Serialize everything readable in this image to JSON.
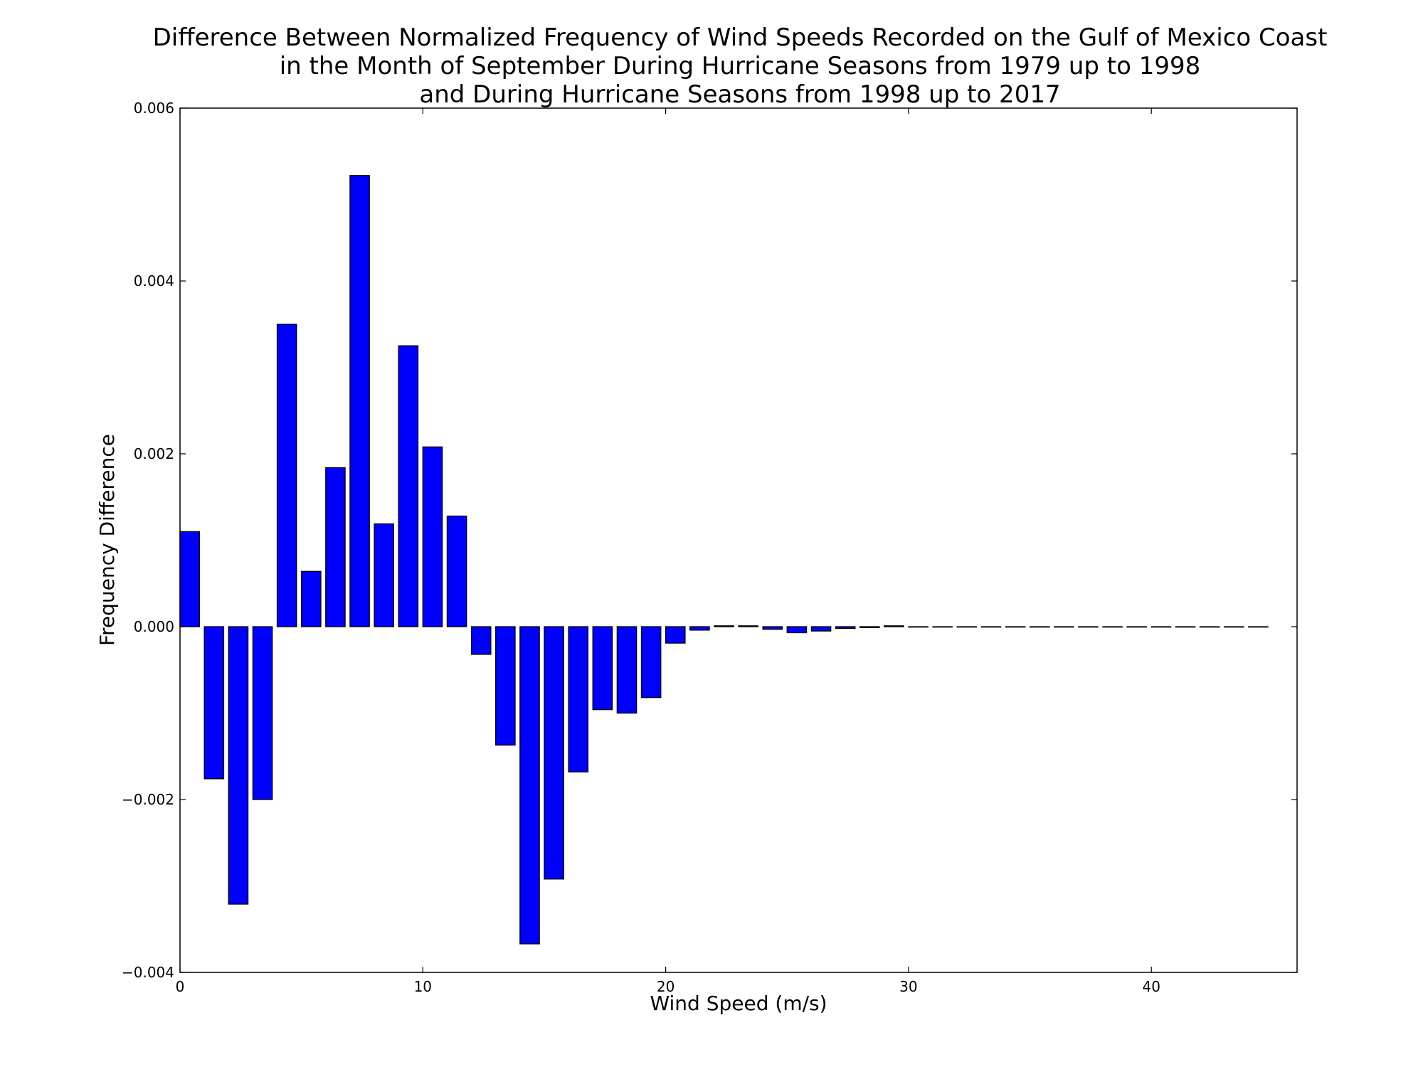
{
  "chart_data": {
    "type": "bar",
    "title_lines": [
      "Difference Between Normalized Frequency of Wind Speeds Recorded on the Gulf of Mexico Coast",
      "in the Month of September During Hurricane Seasons from 1979 up to 1998",
      "and During Hurricane Seasons from 1998 up to 2017"
    ],
    "xlabel": "Wind Speed (m/s)",
    "ylabel": "Frequency Difference",
    "xlim": [
      0,
      46
    ],
    "ylim": [
      -0.004,
      0.006
    ],
    "xticks": [
      0,
      10,
      20,
      30,
      40
    ],
    "yticks": [
      -0.004,
      -0.002,
      0.0,
      0.002,
      0.004,
      0.006
    ],
    "ytick_labels": [
      "−0.004",
      "−0.002",
      "0.000",
      "0.002",
      "0.004",
      "0.006"
    ],
    "bar_color": "#0000ff",
    "bar_width": 0.8,
    "x": [
      0,
      1,
      2,
      3,
      4,
      5,
      6,
      7,
      8,
      9,
      10,
      11,
      12,
      13,
      14,
      15,
      16,
      17,
      18,
      19,
      20,
      21,
      22,
      23,
      24,
      25,
      26,
      27,
      28,
      29,
      30,
      31,
      32,
      33,
      34,
      35,
      36,
      37,
      38,
      39,
      40,
      41,
      42,
      43,
      44
    ],
    "values": [
      0.0011,
      -0.00176,
      -0.00321,
      -0.002,
      0.0035,
      0.00064,
      0.00184,
      0.00522,
      0.00119,
      0.00325,
      0.00208,
      0.00128,
      -0.00032,
      -0.00137,
      -0.00367,
      -0.00292,
      -0.00168,
      -0.00096,
      -0.001,
      -0.00082,
      -0.00019,
      -4e-05,
      1e-05,
      1e-05,
      -3e-05,
      -7e-05,
      -5e-05,
      -2e-05,
      -1e-05,
      1e-05,
      0,
      0,
      0,
      0,
      0,
      0,
      0,
      0,
      0,
      0,
      0,
      0,
      0,
      0,
      0
    ]
  }
}
